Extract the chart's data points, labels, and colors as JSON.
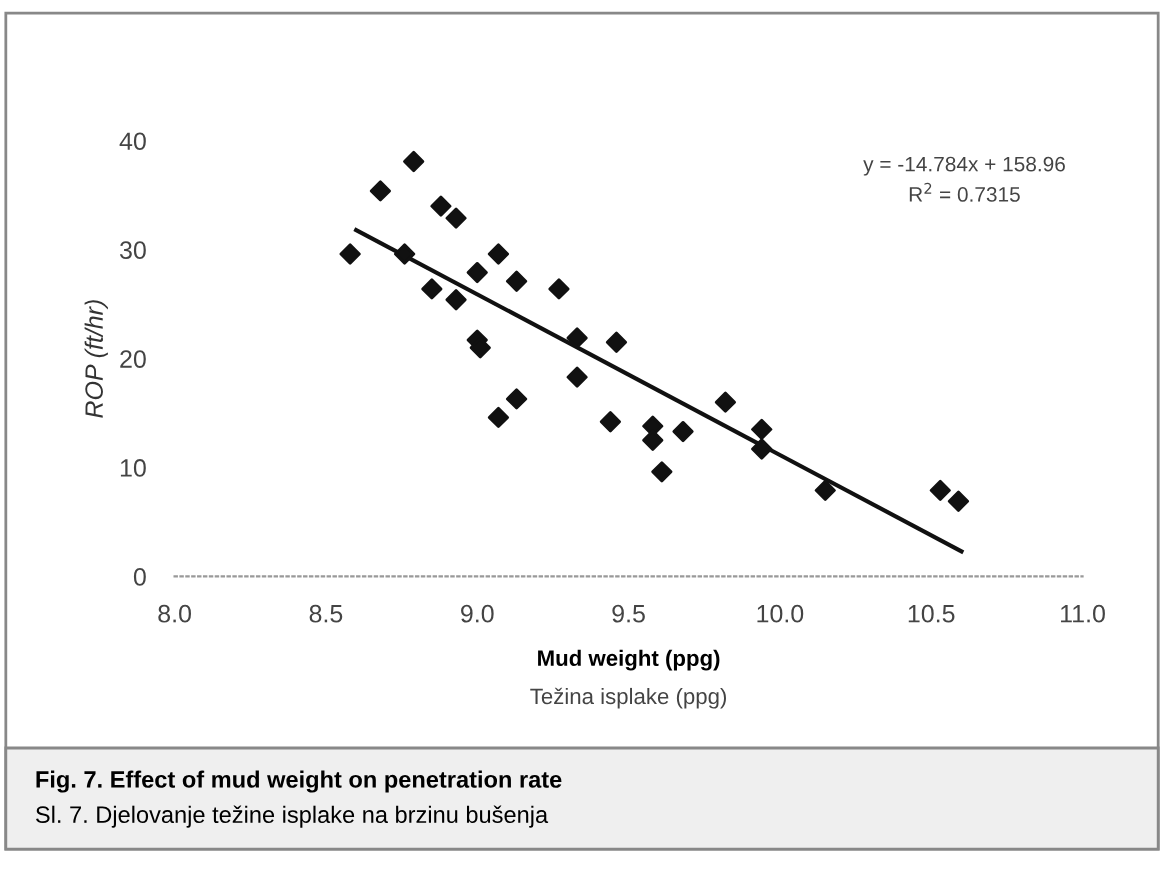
{
  "chart_data": {
    "type": "scatter",
    "title": "Fig. 7. Effect of mud weight on penetration rate",
    "subtitle": "Sl. 7. Djelovanje težine isplake na brzinu bušenja",
    "xlabel": "Mud weight (ppg)",
    "ylabel": "ROP (ft/hr)",
    "annotations": [
      "Težina isplake (ppg)",
      "y = -14.784x + 158.96",
      "R$^{2}$ = 0.7315"
    ],
    "series": [
      {
        "color": "#111111",
        "marker": "diamond",
        "x": [
          8.58,
          8.68,
          8.79,
          8.76,
          8.88,
          8.93,
          8.85,
          8.93,
          9.0,
          9.0,
          9.01,
          9.07,
          9.07,
          9.13,
          9.13,
          9.27,
          9.33,
          9.33,
          9.46,
          9.44,
          9.58,
          9.58,
          9.61,
          9.68,
          9.82,
          9.94,
          9.94,
          10.15,
          10.53,
          10.59
        ],
        "values": [
          29.6,
          35.4,
          38.1,
          29.6,
          34.0,
          32.9,
          26.4,
          25.4,
          27.9,
          21.7,
          21.0,
          29.6,
          14.6,
          27.1,
          16.3,
          26.4,
          21.9,
          18.3,
          21.5,
          14.2,
          13.8,
          12.5,
          9.6,
          13.3,
          16.0,
          13.5,
          11.7,
          7.9,
          7.9,
          6.9
        ]
      },
      {
        "type": "line",
        "color": "#111111",
        "x": [
          8.6,
          10.6
        ],
        "values": [
          31.8,
          2.3
        ]
      }
    ],
    "xlim": [
      8.0,
      11.0
    ],
    "xticks": [
      {
        "value": 8.0,
        "label": "8.0"
      },
      8.5,
      {
        "value": 9.0,
        "label": "9.0"
      },
      9.5,
      {
        "value": 10.0,
        "label": "10.0"
      },
      10.5,
      {
        "value": 11.0,
        "label": "11.0"
      }
    ],
    "ylim": [
      0,
      40
    ],
    "yticks": [
      0,
      10,
      20,
      30,
      40
    ],
    "grid": false,
    "legend": false
  }
}
